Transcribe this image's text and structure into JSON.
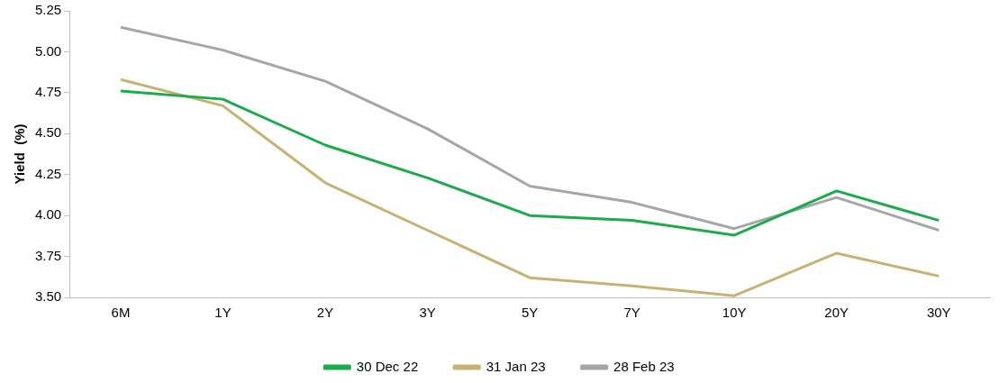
{
  "chart_data": {
    "type": "line",
    "ylabel": "Yield  (%)",
    "categories": [
      "6M",
      "1Y",
      "2Y",
      "3Y",
      "5Y",
      "7Y",
      "10Y",
      "20Y",
      "30Y"
    ],
    "series": [
      {
        "name": "30 Dec 22",
        "color": "#1aab4b",
        "values": [
          4.76,
          4.71,
          4.43,
          4.23,
          4.0,
          3.97,
          3.88,
          4.15,
          3.97
        ]
      },
      {
        "name": "31 Jan 23",
        "color": "#c8b273",
        "values": [
          4.83,
          4.67,
          4.2,
          3.91,
          3.62,
          3.57,
          3.51,
          3.77,
          3.63
        ]
      },
      {
        "name": "28 Feb 23",
        "color": "#a6a6a6",
        "values": [
          5.15,
          5.01,
          4.82,
          4.53,
          4.18,
          4.08,
          3.92,
          4.11,
          3.91
        ]
      }
    ],
    "ylim": [
      3.5,
      5.25
    ],
    "yticks": [
      {
        "value": 3.5,
        "label": "3.50"
      },
      {
        "value": 3.75,
        "label": "3.75"
      },
      {
        "value": 4,
        "label": "4.00"
      },
      {
        "value": 4.25,
        "label": "4.25"
      },
      {
        "value": 4.5,
        "label": "4.50"
      },
      {
        "value": 4.75,
        "label": "4.75"
      },
      {
        "value": 5,
        "label": "5.00"
      },
      {
        "value": 5.25,
        "label": "5.25"
      }
    ],
    "grid": false,
    "legend": "bottom",
    "marker": "none",
    "line_style": "solid"
  }
}
